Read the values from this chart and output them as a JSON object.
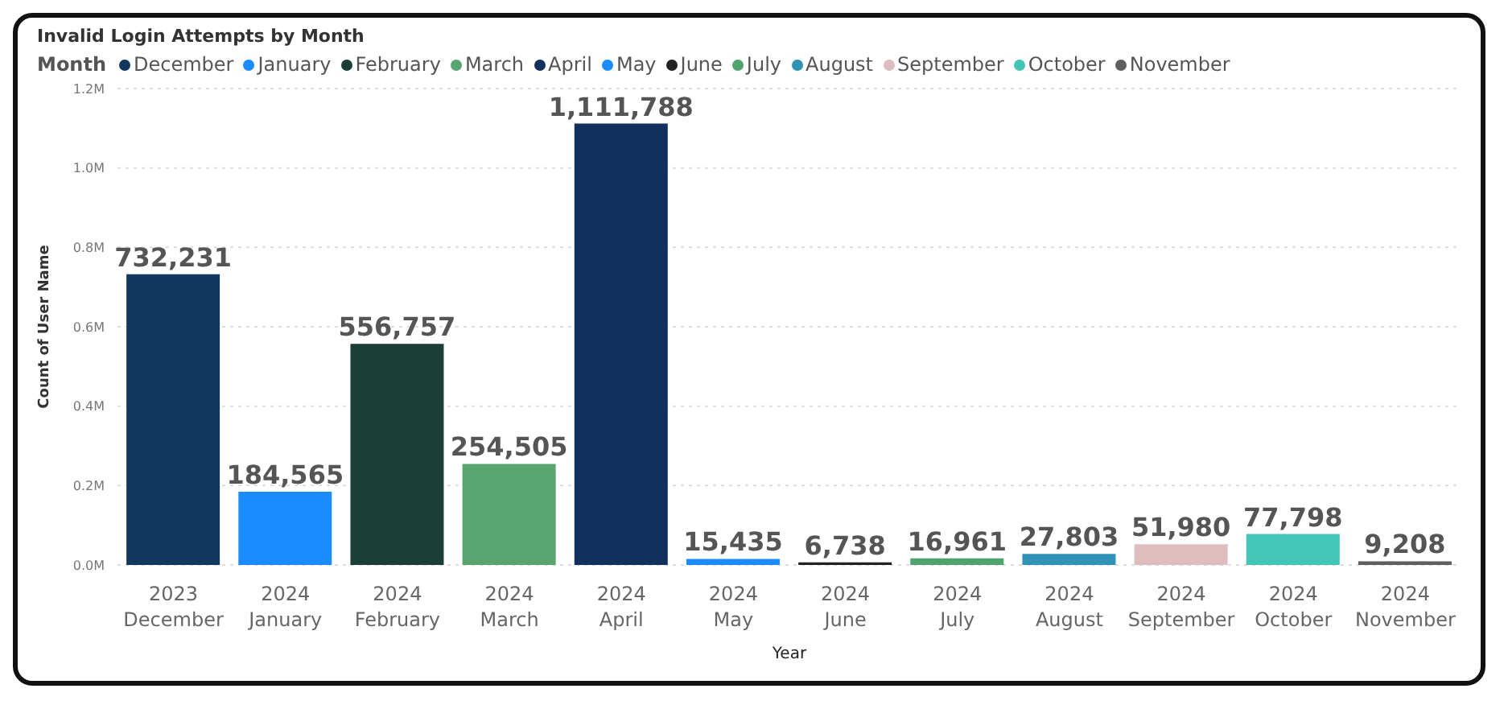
{
  "chart_data": {
    "type": "bar",
    "title": "Invalid Login Attempts by Month",
    "xlabel": "Year",
    "ylabel": "Count of User Name",
    "legend_title": "Month",
    "categories": [
      "2023 December",
      "2024 January",
      "2024 February",
      "2024 March",
      "2024 April",
      "2024 May",
      "2024 June",
      "2024 July",
      "2024 August",
      "2024 September",
      "2024 October",
      "2024 November"
    ],
    "series": [
      {
        "name": "December",
        "color": "#12375f",
        "values": [
          732231,
          null,
          null,
          null,
          null,
          null,
          null,
          null,
          null,
          null,
          null,
          null
        ],
        "value_labels": [
          "732,231",
          null,
          null,
          null,
          null,
          null,
          null,
          null,
          null,
          null,
          null,
          null
        ]
      },
      {
        "name": "January",
        "color": "#1a8cff",
        "values": [
          null,
          184565,
          null,
          null,
          null,
          null,
          null,
          null,
          null,
          null,
          null,
          null
        ],
        "value_labels": [
          null,
          "184,565",
          null,
          null,
          null,
          null,
          null,
          null,
          null,
          null,
          null,
          null
        ]
      },
      {
        "name": "February",
        "color": "#1b3f36",
        "values": [
          null,
          null,
          556757,
          null,
          null,
          null,
          null,
          null,
          null,
          null,
          null,
          null
        ],
        "value_labels": [
          null,
          null,
          "556,757",
          null,
          null,
          null,
          null,
          null,
          null,
          null,
          null,
          null
        ]
      },
      {
        "name": "March",
        "color": "#5aa56f",
        "values": [
          null,
          null,
          null,
          254505,
          null,
          null,
          null,
          null,
          null,
          null,
          null,
          null
        ],
        "value_labels": [
          null,
          null,
          null,
          "254,505",
          null,
          null,
          null,
          null,
          null,
          null,
          null,
          null
        ]
      },
      {
        "name": "April",
        "color": "#11305e",
        "values": [
          null,
          null,
          null,
          null,
          1111788,
          null,
          null,
          null,
          null,
          null,
          null,
          null
        ],
        "value_labels": [
          null,
          null,
          null,
          null,
          "1,111,788",
          null,
          null,
          null,
          null,
          null,
          null,
          null
        ]
      },
      {
        "name": "May",
        "color": "#1a8cff",
        "values": [
          null,
          null,
          null,
          null,
          null,
          15435,
          null,
          null,
          null,
          null,
          null,
          null
        ],
        "value_labels": [
          null,
          null,
          null,
          null,
          null,
          "15,435",
          null,
          null,
          null,
          null,
          null,
          null
        ]
      },
      {
        "name": "June",
        "color": "#222222",
        "values": [
          null,
          null,
          null,
          null,
          null,
          null,
          6738,
          null,
          null,
          null,
          null,
          null
        ],
        "value_labels": [
          null,
          null,
          null,
          null,
          null,
          null,
          "6,738",
          null,
          null,
          null,
          null,
          null
        ]
      },
      {
        "name": "July",
        "color": "#4fa36c",
        "values": [
          null,
          null,
          null,
          null,
          null,
          null,
          null,
          16961,
          null,
          null,
          null,
          null
        ],
        "value_labels": [
          null,
          null,
          null,
          null,
          null,
          null,
          null,
          "16,961",
          null,
          null,
          null,
          null
        ]
      },
      {
        "name": "August",
        "color": "#2e93b5",
        "values": [
          null,
          null,
          null,
          null,
          null,
          null,
          null,
          null,
          27803,
          null,
          null,
          null
        ],
        "value_labels": [
          null,
          null,
          null,
          null,
          null,
          null,
          null,
          null,
          "27,803",
          null,
          null,
          null
        ]
      },
      {
        "name": "September",
        "color": "#dfbcbe",
        "values": [
          null,
          null,
          null,
          null,
          null,
          null,
          null,
          null,
          null,
          51980,
          null,
          null
        ],
        "value_labels": [
          null,
          null,
          null,
          null,
          null,
          null,
          null,
          null,
          null,
          "51,980",
          null,
          null
        ]
      },
      {
        "name": "October",
        "color": "#45c4b8",
        "values": [
          null,
          null,
          null,
          null,
          null,
          null,
          null,
          null,
          null,
          null,
          77798,
          null
        ],
        "value_labels": [
          null,
          null,
          null,
          null,
          null,
          null,
          null,
          null,
          null,
          null,
          "77,798",
          null
        ]
      },
      {
        "name": "November",
        "color": "#5f5f5f",
        "values": [
          null,
          null,
          null,
          null,
          null,
          null,
          null,
          null,
          null,
          null,
          null,
          9208
        ],
        "value_labels": [
          null,
          null,
          null,
          null,
          null,
          null,
          null,
          null,
          null,
          null,
          null,
          "9,208"
        ]
      }
    ],
    "stacked": true,
    "ylim": [
      0,
      1200000
    ],
    "yticks": [
      {
        "value": 0,
        "label": "0.0M"
      },
      {
        "value": 200000,
        "label": "0.2M"
      },
      {
        "value": 400000,
        "label": "0.4M"
      },
      {
        "value": 600000,
        "label": "0.6M"
      },
      {
        "value": 800000,
        "label": "0.8M"
      },
      {
        "value": 1000000,
        "label": "1.0M"
      },
      {
        "value": 1200000,
        "label": "1.2M"
      }
    ],
    "grid": "y",
    "legend": "top left"
  }
}
